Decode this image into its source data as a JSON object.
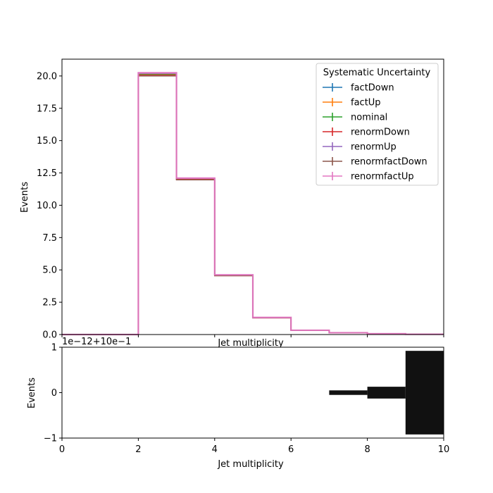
{
  "chart_data": [
    {
      "type": "step",
      "xlabel": "Jet multiplicity",
      "ylabel": "Events",
      "xlim": [
        0,
        10
      ],
      "ylim": [
        0,
        21.3
      ],
      "xticks": [
        0,
        2,
        4,
        6,
        8,
        10
      ],
      "yticks": [
        "0.0",
        "2.5",
        "5.0",
        "7.5",
        "10.0",
        "12.5",
        "15.0",
        "17.5",
        "20.0"
      ],
      "legend_title": "Systematic Uncertainty",
      "legend_position": "top-right",
      "bin_edges": [
        0,
        1,
        2,
        3,
        4,
        5,
        6,
        7,
        8,
        9,
        10
      ],
      "series": [
        {
          "name": "factDown",
          "color": "#1f77b4",
          "values": [
            0,
            0,
            20.15,
            12.05,
            4.58,
            1.3,
            0.32,
            0.14,
            0.06,
            0.02
          ]
        },
        {
          "name": "factUp",
          "color": "#ff7f0e",
          "values": [
            0,
            0,
            20.15,
            12.05,
            4.58,
            1.3,
            0.32,
            0.14,
            0.06,
            0.02
          ]
        },
        {
          "name": "nominal",
          "color": "#2ca02c",
          "values": [
            0,
            0,
            20.1,
            12.02,
            4.57,
            1.3,
            0.32,
            0.14,
            0.06,
            0.02
          ]
        },
        {
          "name": "renormDown",
          "color": "#d62728",
          "values": [
            0,
            0,
            20.05,
            12.0,
            4.56,
            1.29,
            0.32,
            0.14,
            0.06,
            0.02
          ]
        },
        {
          "name": "renormUp",
          "color": "#9467bd",
          "values": [
            0,
            0,
            20.2,
            12.08,
            4.6,
            1.31,
            0.32,
            0.14,
            0.06,
            0.02
          ]
        },
        {
          "name": "renormfactDown",
          "color": "#8c564b",
          "values": [
            0,
            0,
            20.0,
            11.97,
            4.55,
            1.29,
            0.32,
            0.14,
            0.06,
            0.02
          ]
        },
        {
          "name": "renormfactUp",
          "color": "#e377c2",
          "values": [
            0,
            0,
            20.25,
            12.1,
            4.62,
            1.32,
            0.33,
            0.14,
            0.06,
            0.02
          ]
        }
      ]
    },
    {
      "type": "bar",
      "xlabel": "Jet multiplicity",
      "ylabel": "Events",
      "xlim": [
        0,
        10
      ],
      "ylim": [
        -1,
        1
      ],
      "xticks": [
        0,
        2,
        4,
        6,
        8,
        10
      ],
      "yticks": [
        "−1",
        "0",
        "1"
      ],
      "offset_text": "1e−12+10e−1",
      "bands": [
        {
          "x0": 7,
          "x1": 8,
          "half_height": 0.05
        },
        {
          "x0": 8,
          "x1": 9,
          "half_height": 0.13
        },
        {
          "x0": 9,
          "x1": 10,
          "half_height": 0.92
        }
      ],
      "band_color": "#111111"
    }
  ]
}
